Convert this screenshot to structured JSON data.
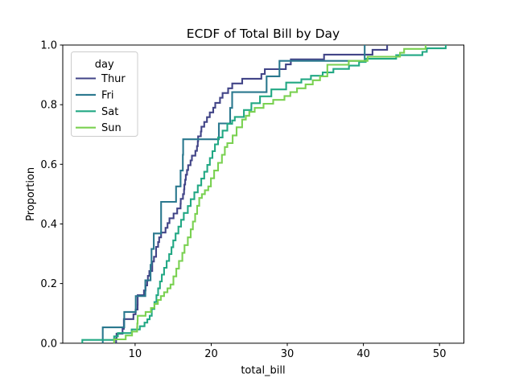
{
  "figure": {
    "title": "ECDF of Total Bill by Day",
    "xlabel": "total_bill",
    "ylabel": "Proportion",
    "background_color": "#ffffff",
    "spine_color": "#000000"
  },
  "axes": {
    "x_tick_labels": [
      "10",
      "20",
      "30",
      "40",
      "50"
    ],
    "x_tick_values": [
      10,
      20,
      30,
      40,
      50
    ],
    "y_tick_labels": [
      "0.0",
      "0.2",
      "0.4",
      "0.6",
      "0.8",
      "1.0"
    ],
    "y_tick_values": [
      0,
      0.2,
      0.4,
      0.6,
      0.8,
      1.0
    ],
    "grid": false
  },
  "legend": {
    "title": "day",
    "position": "upper left",
    "border_color": "#cccccc"
  },
  "chart_data": {
    "type": "line",
    "variant": "ecdf",
    "title": "ECDF of Total Bill by Day",
    "xlabel": "total_bill",
    "ylabel": "Proportion",
    "xlim": [
      0.5,
      53.2
    ],
    "ylim": [
      0,
      1
    ],
    "legend_position": "upper left",
    "series": [
      {
        "name": "Thur",
        "color": "#414487",
        "points": [
          [
            7.51,
            0.016
          ],
          [
            7.56,
            0.032
          ],
          [
            8.35,
            0.048
          ],
          [
            8.52,
            0.081
          ],
          [
            9.78,
            0.097
          ],
          [
            10.07,
            0.113
          ],
          [
            10.33,
            0.129
          ],
          [
            10.34,
            0.161
          ],
          [
            11.17,
            0.177
          ],
          [
            11.38,
            0.194
          ],
          [
            11.59,
            0.21
          ],
          [
            11.69,
            0.226
          ],
          [
            11.87,
            0.242
          ],
          [
            12.26,
            0.274
          ],
          [
            12.48,
            0.29
          ],
          [
            12.76,
            0.323
          ],
          [
            13.03,
            0.339
          ],
          [
            13.16,
            0.355
          ],
          [
            13.42,
            0.371
          ],
          [
            14.0,
            0.387
          ],
          [
            14.26,
            0.403
          ],
          [
            14.52,
            0.419
          ],
          [
            15.06,
            0.435
          ],
          [
            15.53,
            0.452
          ],
          [
            15.98,
            0.468
          ],
          [
            16.0,
            0.484
          ],
          [
            16.29,
            0.5
          ],
          [
            16.43,
            0.516
          ],
          [
            16.47,
            0.532
          ],
          [
            16.58,
            0.548
          ],
          [
            16.66,
            0.565
          ],
          [
            16.82,
            0.581
          ],
          [
            16.97,
            0.597
          ],
          [
            17.29,
            0.613
          ],
          [
            17.47,
            0.629
          ],
          [
            17.92,
            0.645
          ],
          [
            18.13,
            0.661
          ],
          [
            18.24,
            0.677
          ],
          [
            18.28,
            0.694
          ],
          [
            18.64,
            0.71
          ],
          [
            18.71,
            0.726
          ],
          [
            19.08,
            0.742
          ],
          [
            19.44,
            0.758
          ],
          [
            19.81,
            0.774
          ],
          [
            20.27,
            0.79
          ],
          [
            20.53,
            0.806
          ],
          [
            21.16,
            0.823
          ],
          [
            21.5,
            0.839
          ],
          [
            22.23,
            0.855
          ],
          [
            22.76,
            0.871
          ],
          [
            24.08,
            0.887
          ],
          [
            26.59,
            0.903
          ],
          [
            27.05,
            0.919
          ],
          [
            29.8,
            0.935
          ],
          [
            30.46,
            0.952
          ],
          [
            34.83,
            0.968
          ],
          [
            41.19,
            0.984
          ],
          [
            43.11,
            1.0
          ]
        ]
      },
      {
        "name": "Fri",
        "color": "#2a788e",
        "points": [
          [
            5.75,
            0.053
          ],
          [
            8.58,
            0.105
          ],
          [
            10.09,
            0.158
          ],
          [
            11.35,
            0.211
          ],
          [
            12.03,
            0.263
          ],
          [
            12.16,
            0.316
          ],
          [
            12.46,
            0.368
          ],
          [
            13.42,
            0.474
          ],
          [
            15.38,
            0.526
          ],
          [
            15.98,
            0.579
          ],
          [
            16.27,
            0.632
          ],
          [
            16.32,
            0.684
          ],
          [
            21.01,
            0.737
          ],
          [
            22.49,
            0.789
          ],
          [
            22.75,
            0.842
          ],
          [
            27.28,
            0.895
          ],
          [
            28.97,
            0.947
          ],
          [
            40.17,
            1.0
          ]
        ]
      },
      {
        "name": "Sat",
        "color": "#22a884",
        "points": [
          [
            3.07,
            0.011
          ],
          [
            7.25,
            0.023
          ],
          [
            7.74,
            0.034
          ],
          [
            9.55,
            0.046
          ],
          [
            10.63,
            0.057
          ],
          [
            11.24,
            0.069
          ],
          [
            11.61,
            0.08
          ],
          [
            11.92,
            0.092
          ],
          [
            12.19,
            0.115
          ],
          [
            12.54,
            0.138
          ],
          [
            12.81,
            0.161
          ],
          [
            13.03,
            0.184
          ],
          [
            13.27,
            0.207
          ],
          [
            13.51,
            0.23
          ],
          [
            13.81,
            0.253
          ],
          [
            14.15,
            0.276
          ],
          [
            14.48,
            0.299
          ],
          [
            14.78,
            0.322
          ],
          [
            15.01,
            0.345
          ],
          [
            15.32,
            0.368
          ],
          [
            15.69,
            0.391
          ],
          [
            16.04,
            0.414
          ],
          [
            16.4,
            0.437
          ],
          [
            16.93,
            0.46
          ],
          [
            17.31,
            0.483
          ],
          [
            17.78,
            0.506
          ],
          [
            18.24,
            0.529
          ],
          [
            18.69,
            0.552
          ],
          [
            19.08,
            0.575
          ],
          [
            19.49,
            0.598
          ],
          [
            19.82,
            0.621
          ],
          [
            20.16,
            0.644
          ],
          [
            20.49,
            0.667
          ],
          [
            20.9,
            0.69
          ],
          [
            21.5,
            0.713
          ],
          [
            22.12,
            0.736
          ],
          [
            22.75,
            0.747
          ],
          [
            23.1,
            0.759
          ],
          [
            24.3,
            0.782
          ],
          [
            25.28,
            0.805
          ],
          [
            26.41,
            0.828
          ],
          [
            27.9,
            0.851
          ],
          [
            29.85,
            0.874
          ],
          [
            31.85,
            0.885
          ],
          [
            33.1,
            0.897
          ],
          [
            34.65,
            0.908
          ],
          [
            36.05,
            0.92
          ],
          [
            38.1,
            0.931
          ],
          [
            39.42,
            0.943
          ],
          [
            40.3,
            0.954
          ],
          [
            44.3,
            0.966
          ],
          [
            47.74,
            0.977
          ],
          [
            48.33,
            0.989
          ],
          [
            50.81,
            1.0
          ]
        ]
      },
      {
        "name": "Sun",
        "color": "#7ad151",
        "points": [
          [
            7.25,
            0.013
          ],
          [
            8.77,
            0.026
          ],
          [
            9.6,
            0.039
          ],
          [
            10.27,
            0.053
          ],
          [
            10.29,
            0.066
          ],
          [
            10.33,
            0.079
          ],
          [
            10.34,
            0.092
          ],
          [
            11.38,
            0.105
          ],
          [
            12.09,
            0.118
          ],
          [
            12.54,
            0.132
          ],
          [
            13.0,
            0.145
          ],
          [
            13.39,
            0.158
          ],
          [
            13.81,
            0.171
          ],
          [
            14.25,
            0.184
          ],
          [
            14.66,
            0.197
          ],
          [
            15.04,
            0.224
          ],
          [
            15.42,
            0.25
          ],
          [
            15.77,
            0.276
          ],
          [
            16.21,
            0.303
          ],
          [
            16.49,
            0.329
          ],
          [
            16.93,
            0.355
          ],
          [
            17.31,
            0.382
          ],
          [
            17.59,
            0.408
          ],
          [
            17.89,
            0.434
          ],
          [
            18.15,
            0.461
          ],
          [
            18.43,
            0.487
          ],
          [
            18.78,
            0.5
          ],
          [
            19.17,
            0.513
          ],
          [
            19.61,
            0.526
          ],
          [
            19.96,
            0.553
          ],
          [
            20.39,
            0.579
          ],
          [
            20.9,
            0.605
          ],
          [
            21.41,
            0.632
          ],
          [
            21.79,
            0.658
          ],
          [
            22.12,
            0.671
          ],
          [
            22.82,
            0.697
          ],
          [
            23.33,
            0.724
          ],
          [
            24.06,
            0.75
          ],
          [
            24.55,
            0.763
          ],
          [
            25.0,
            0.776
          ],
          [
            25.71,
            0.789
          ],
          [
            26.88,
            0.803
          ],
          [
            28.15,
            0.816
          ],
          [
            29.63,
            0.829
          ],
          [
            30.4,
            0.842
          ],
          [
            31.27,
            0.855
          ],
          [
            32.4,
            0.868
          ],
          [
            33.35,
            0.882
          ],
          [
            34.3,
            0.895
          ],
          [
            35.26,
            0.934
          ],
          [
            38.07,
            0.947
          ],
          [
            40.55,
            0.961
          ],
          [
            44.81,
            0.974
          ],
          [
            45.35,
            0.987
          ],
          [
            48.17,
            1.0
          ]
        ]
      }
    ]
  }
}
